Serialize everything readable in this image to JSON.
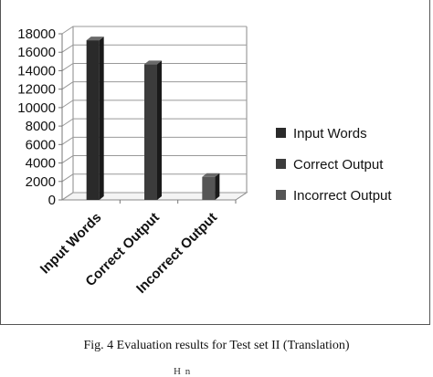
{
  "chart_data": {
    "type": "bar",
    "title": "",
    "xlabel": "",
    "ylabel": "",
    "categories": [
      "Input Words",
      "Correct Output",
      "Incorrect Output"
    ],
    "series": [
      {
        "name": "Input Words",
        "values": [
          17300,
          null,
          null
        ],
        "color": "#2a2a2a"
      },
      {
        "name": "Correct Output",
        "values": [
          null,
          14700,
          null
        ],
        "color": "#3c3c3c"
      },
      {
        "name": "Incorrect Output",
        "values": [
          null,
          null,
          2500
        ],
        "color": "#555555"
      }
    ],
    "yticks": [
      "0",
      "2000",
      "4000",
      "6000",
      "8000",
      "10000",
      "12000",
      "14000",
      "16000",
      "18000"
    ],
    "ylim": [
      0,
      18000
    ],
    "grid": true,
    "three_d": true,
    "legend": "right"
  },
  "caption": "Fig. 4 Evaluation results for Test set II (Translation)",
  "stray": "H    n"
}
